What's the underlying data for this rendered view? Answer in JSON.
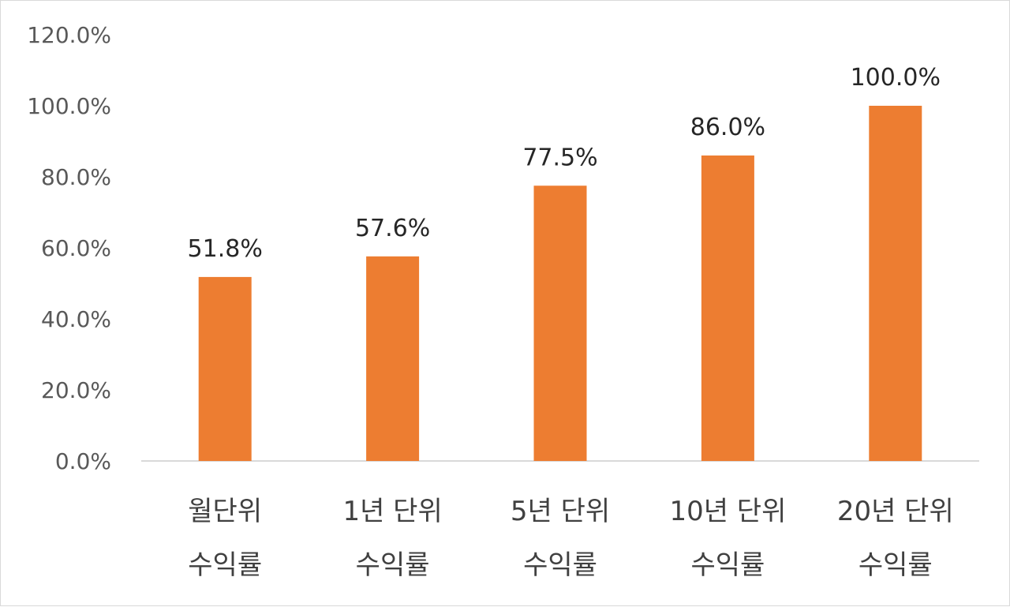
{
  "chart_data": {
    "type": "bar",
    "title": "",
    "xlabel": "",
    "ylabel": "",
    "categories": [
      [
        "월단위",
        "수익률"
      ],
      [
        "1년 단위",
        "수익률"
      ],
      [
        "5년 단위",
        "수익률"
      ],
      [
        "10년 단위",
        "수익률"
      ],
      [
        "20년 단위",
        "수익률"
      ]
    ],
    "values": [
      51.8,
      57.6,
      77.5,
      86.0,
      100.0
    ],
    "data_labels": [
      "51.8%",
      "57.6%",
      "77.5%",
      "86.0%",
      "100.0%"
    ],
    "y_ticks": [
      "0.0%",
      "20.0%",
      "40.0%",
      "60.0%",
      "80.0%",
      "100.0%",
      "120.0%"
    ],
    "ylim": [
      0,
      120
    ],
    "grid": false,
    "legend": "none",
    "bar_color": "#ED7D31",
    "axis_color": "#d9d9d9"
  }
}
